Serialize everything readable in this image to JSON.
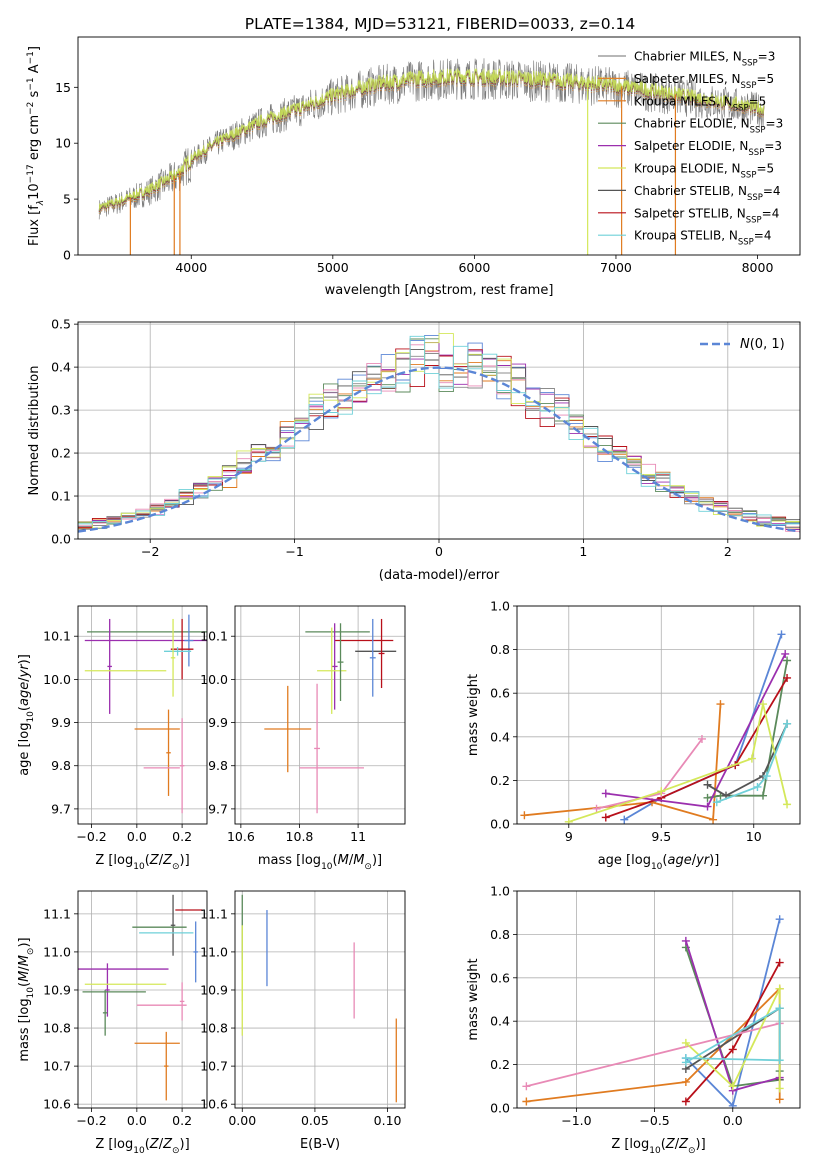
{
  "figure_title": "PLATE=1384, MJD=53121, FIBERID=0033, z=0.14",
  "colors": {
    "c_miles": "#8c8c8c",
    "s_miles": "#e3822a",
    "k_miles": "#e07b20",
    "c_elodie": "#5b8a5b",
    "s_elodie": "#9b2fae",
    "k_elodie": "#d4e85a",
    "c_stelib": "#555555",
    "s_stelib": "#b8101a",
    "k_stelib": "#6fd0d8",
    "blue": "#5b86d6",
    "pink": "#e88ab6",
    "grid": "#b0b0b0"
  },
  "chart_data": [
    {
      "id": "spectrum",
      "type": "line",
      "title": "PLATE=1384, MJD=53121, FIBERID=0033, z=0.14",
      "xlabel": "wavelength [Angstrom, rest frame]",
      "ylabel_parts": [
        "Flux [f",
        "λ",
        "10",
        "−17",
        " erg cm",
        "−2",
        " s",
        "−1",
        " A",
        "−1",
        "]"
      ],
      "xlim": [
        3200,
        8300
      ],
      "ylim": [
        0,
        19.5
      ],
      "xticks": [
        4000,
        5000,
        6000,
        7000,
        8000
      ],
      "yticks": [
        0,
        5,
        10,
        15
      ],
      "grid": false,
      "legend_position": "right",
      "legend": [
        {
          "label": "Chabrier MILES, N",
          "sub": "SSP",
          "rest": "=3",
          "color": "#8c8c8c"
        },
        {
          "label": "Salpeter MILES, N",
          "sub": "SSP",
          "rest": "=5",
          "color": "#e3822a"
        },
        {
          "label": "Kroupa MILES, N",
          "sub": "SSP",
          "rest": "=5",
          "color": "#e07b20"
        },
        {
          "label": "Chabrier ELODIE, N",
          "sub": "SSP",
          "rest": "=3",
          "color": "#5b8a5b"
        },
        {
          "label": "Salpeter ELODIE, N",
          "sub": "SSP",
          "rest": "=3",
          "color": "#9b2fae"
        },
        {
          "label": "Kroupa ELODIE, N",
          "sub": "SSP",
          "rest": "=5",
          "color": "#d4e85a"
        },
        {
          "label": "Chabrier STELIB, N",
          "sub": "SSP",
          "rest": "=4",
          "color": "#555555"
        },
        {
          "label": "Salpeter STELIB, N",
          "sub": "SSP",
          "rest": "=4",
          "color": "#b8101a"
        },
        {
          "label": "Kroupa STELIB, N",
          "sub": "SSP",
          "rest": "=4",
          "color": "#6fd0d8"
        }
      ],
      "continuum": {
        "x": [
          3350,
          3500,
          3700,
          3900,
          4000,
          4200,
          4500,
          4800,
          5000,
          5300,
          5600,
          5900,
          6200,
          6500,
          6800,
          7100,
          7300,
          7600,
          7900,
          8050
        ],
        "y": [
          4.2,
          4.8,
          5.8,
          7.2,
          8.6,
          10.2,
          12.0,
          13.3,
          14.3,
          15.3,
          15.8,
          16.0,
          15.9,
          15.7,
          15.4,
          15.0,
          14.6,
          14.0,
          13.4,
          13.0
        ]
      },
      "edge_drops": [
        {
          "x": 3570,
          "color": "#e07b20"
        },
        {
          "x": 3880,
          "color": "#e07b20"
        },
        {
          "x": 3920,
          "color": "#e07b20"
        },
        {
          "x": 6800,
          "color": "#d4e85a"
        },
        {
          "x": 7040,
          "color": "#e07b20"
        },
        {
          "x": 7420,
          "color": "#e07b20"
        }
      ],
      "noise_seed": 7
    },
    {
      "id": "histogram",
      "type": "line",
      "xlabel": "(data-model)/error",
      "ylabel": "Normed distribution",
      "xlim": [
        -2.5,
        2.5
      ],
      "ylim": [
        0,
        0.505
      ],
      "xticks": [
        -2,
        -1,
        0,
        1,
        2
      ],
      "yticks": [
        0.0,
        0.1,
        0.2,
        0.3,
        0.4,
        0.5
      ],
      "grid": true,
      "legend_position": "top-right",
      "reference_label": "N(0, 1)",
      "bin_width": 0.1,
      "series_colors": [
        "#5b86d6",
        "#e07b20",
        "#5b8a5b",
        "#b8101a",
        "#9b2fae",
        "#555555",
        "#e88ab6",
        "#8c8c8c",
        "#d4e85a",
        "#6fd0d8"
      ]
    },
    {
      "id": "age_vs_Z",
      "type": "scatter",
      "xlabel": "Z [log10(Z/Z⊙)]",
      "ylabel": "age  [log10(age/yr)]",
      "xlim": [
        -0.26,
        0.31
      ],
      "ylim": [
        9.665,
        10.17
      ],
      "xticks": [
        -0.2,
        0.0,
        0.2
      ],
      "xticklabels": [
        "−0.2",
        "0.0",
        "0.2"
      ],
      "yticks": [
        9.7,
        9.8,
        9.9,
        10.0,
        10.1
      ],
      "grid": true,
      "points": [
        {
          "x": 0.05,
          "y": 10.11,
          "xerr": 0.27,
          "yerr": 0,
          "color": "#5b8a5b"
        },
        {
          "x": 0.07,
          "y": 10.09,
          "xerr": 0.3,
          "yerr": 0,
          "color": "#9b2fae"
        },
        {
          "x": 0.23,
          "y": 10.09,
          "xerr": 0.02,
          "yerr": 0.06,
          "color": "#5b86d6"
        },
        {
          "x": 0.2,
          "y": 10.07,
          "xerr": 0.05,
          "yerr": 0.07,
          "color": "#b8101a"
        },
        {
          "x": 0.18,
          "y": 10.065,
          "xerr": 0.06,
          "yerr": 0.01,
          "color": "#6fd0d8"
        },
        {
          "x": -0.12,
          "y": 10.03,
          "xerr": 0.01,
          "yerr": 0.11,
          "color": "#9b2fae"
        },
        {
          "x": -0.05,
          "y": 10.02,
          "xerr": 0.18,
          "yerr": 0.0,
          "color": "#d4e85a"
        },
        {
          "x": 0.16,
          "y": 10.05,
          "xerr": 0.01,
          "yerr": 0.09,
          "color": "#d4e85a"
        },
        {
          "x": 0.09,
          "y": 9.885,
          "xerr": 0.1,
          "yerr": 0.0,
          "color": "#e07b20"
        },
        {
          "x": 0.14,
          "y": 9.83,
          "xerr": 0.01,
          "yerr": 0.1,
          "color": "#e07b20"
        },
        {
          "x": 0.11,
          "y": 9.795,
          "xerr": 0.08,
          "yerr": 0.0,
          "color": "#e88ab6"
        },
        {
          "x": 0.2,
          "y": 9.8,
          "xerr": 0.01,
          "yerr": 0.11,
          "color": "#e88ab6"
        }
      ]
    },
    {
      "id": "age_vs_mass",
      "type": "scatter",
      "xlabel": "mass [log10(M/M⊙)]",
      "ylabel": "",
      "xlim": [
        10.58,
        11.16
      ],
      "ylim": [
        9.665,
        10.17
      ],
      "xticks": [
        10.6,
        10.8,
        11.0
      ],
      "yticks": [
        9.7,
        9.8,
        9.9,
        10.0,
        10.1
      ],
      "grid": true,
      "points": [
        {
          "x": 10.93,
          "y": 10.11,
          "xerr": 0.11,
          "yerr": 0.0,
          "color": "#5b8a5b"
        },
        {
          "x": 11.02,
          "y": 10.09,
          "xerr": 0.1,
          "yerr": 0.0,
          "color": "#b8101a"
        },
        {
          "x": 11.06,
          "y": 10.065,
          "xerr": 0.07,
          "yerr": 0.0,
          "color": "#555555"
        },
        {
          "x": 11.08,
          "y": 10.06,
          "xerr": 0.01,
          "yerr": 0.08,
          "color": "#b8101a"
        },
        {
          "x": 11.05,
          "y": 10.05,
          "xerr": 0.01,
          "yerr": 0.09,
          "color": "#5b86d6"
        },
        {
          "x": 10.92,
          "y": 10.03,
          "xerr": 0.01,
          "yerr": 0.1,
          "color": "#9b2fae"
        },
        {
          "x": 10.91,
          "y": 10.02,
          "xerr": 0.05,
          "yerr": 0.1,
          "color": "#d4e85a"
        },
        {
          "x": 10.94,
          "y": 10.04,
          "xerr": 0.01,
          "yerr": 0.09,
          "color": "#5b8a5b"
        },
        {
          "x": 10.76,
          "y": 9.885,
          "xerr": 0.08,
          "yerr": 0.1,
          "color": "#e07b20"
        },
        {
          "x": 10.91,
          "y": 9.795,
          "xerr": 0.11,
          "yerr": 0.0,
          "color": "#e88ab6"
        },
        {
          "x": 10.86,
          "y": 9.84,
          "xerr": 0.01,
          "yerr": 0.15,
          "color": "#e88ab6"
        }
      ]
    },
    {
      "id": "mass_weight_vs_age",
      "type": "line",
      "xlabel": "age  [log10(age/yr)]",
      "ylabel": "mass weight",
      "xlim": [
        8.72,
        10.25
      ],
      "ylim": [
        0.0,
        1.0
      ],
      "xticks": [
        9.0,
        9.5,
        10.0
      ],
      "yticks": [
        0.0,
        0.2,
        0.4,
        0.6,
        0.8,
        1.0
      ],
      "grid": true,
      "series": [
        {
          "color": "#5b86d6",
          "x": [
            9.3,
            9.5,
            9.9,
            10.15
          ],
          "y": [
            0.02,
            0.12,
            0.27,
            0.87
          ]
        },
        {
          "color": "#e07b20",
          "x": [
            8.76,
            9.45,
            9.78,
            9.82
          ],
          "y": [
            0.04,
            0.1,
            0.02,
            0.55
          ]
        },
        {
          "color": "#5b8a5b",
          "x": [
            9.75,
            9.82,
            10.05,
            10.18
          ],
          "y": [
            0.12,
            0.13,
            0.13,
            0.75
          ]
        },
        {
          "color": "#b8101a",
          "x": [
            9.2,
            9.5,
            9.9,
            10.18
          ],
          "y": [
            0.03,
            0.12,
            0.27,
            0.67
          ]
        },
        {
          "color": "#9b2fae",
          "x": [
            9.2,
            9.75,
            10.17
          ],
          "y": [
            0.14,
            0.08,
            0.78
          ]
        },
        {
          "color": "#555555",
          "x": [
            9.75,
            9.85,
            10.05,
            10.18
          ],
          "y": [
            0.18,
            0.13,
            0.22,
            0.46
          ]
        },
        {
          "color": "#e88ab6",
          "x": [
            9.15,
            9.5,
            9.72
          ],
          "y": [
            0.07,
            0.14,
            0.39
          ]
        },
        {
          "color": "#d4e85a",
          "x": [
            9.0,
            9.5,
            9.99,
            10.05,
            10.18
          ],
          "y": [
            0.01,
            0.15,
            0.3,
            0.55,
            0.09
          ]
        },
        {
          "color": "#6fd0d8",
          "x": [
            9.8,
            10.02,
            10.07,
            10.18
          ],
          "y": [
            0.1,
            0.17,
            0.22,
            0.46
          ]
        }
      ]
    },
    {
      "id": "mass_vs_Z",
      "type": "scatter",
      "xlabel": "Z [log10(Z/Z⊙)]",
      "ylabel": "mass [log10(M/M⊙)]",
      "xlim": [
        -0.26,
        0.31
      ],
      "ylim": [
        10.59,
        11.16
      ],
      "xticks": [
        -0.2,
        0.0,
        0.2
      ],
      "xticklabels": [
        "−0.2",
        "0.0",
        "0.2"
      ],
      "yticks": [
        10.6,
        10.7,
        10.8,
        10.9,
        11.0,
        11.1
      ],
      "grid": true,
      "points": [
        {
          "x": 0.23,
          "y": 11.11,
          "xerr": 0.06,
          "yerr": 0.0,
          "color": "#b8101a"
        },
        {
          "x": 0.16,
          "y": 11.07,
          "xerr": 0.01,
          "yerr": 0.08,
          "color": "#555555"
        },
        {
          "x": 0.1,
          "y": 11.065,
          "xerr": 0.12,
          "yerr": 0.0,
          "color": "#5b8a5b"
        },
        {
          "x": 0.13,
          "y": 11.05,
          "xerr": 0.12,
          "yerr": 0.0,
          "color": "#6fd0d8"
        },
        {
          "x": 0.26,
          "y": 11.0,
          "xerr": 0.01,
          "yerr": 0.08,
          "color": "#5b86d6"
        },
        {
          "x": -0.06,
          "y": 10.955,
          "xerr": 0.2,
          "yerr": 0.0,
          "color": "#9b2fae"
        },
        {
          "x": -0.13,
          "y": 10.9,
          "xerr": 0.01,
          "yerr": 0.07,
          "color": "#9b2fae"
        },
        {
          "x": -0.05,
          "y": 10.915,
          "xerr": 0.18,
          "yerr": 0.0,
          "color": "#d4e85a"
        },
        {
          "x": -0.1,
          "y": 10.895,
          "xerr": 0.14,
          "yerr": 0.0,
          "color": "#5b8a5b"
        },
        {
          "x": -0.14,
          "y": 10.84,
          "xerr": 0.01,
          "yerr": 0.06,
          "color": "#5b8a5b"
        },
        {
          "x": 0.11,
          "y": 10.86,
          "xerr": 0.11,
          "yerr": 0.0,
          "color": "#e88ab6"
        },
        {
          "x": 0.2,
          "y": 10.87,
          "xerr": 0.01,
          "yerr": 0.05,
          "color": "#e88ab6"
        },
        {
          "x": 0.09,
          "y": 10.76,
          "xerr": 0.1,
          "yerr": 0.0,
          "color": "#e07b20"
        },
        {
          "x": 0.13,
          "y": 10.7,
          "xerr": 0.01,
          "yerr": 0.09,
          "color": "#e07b20"
        }
      ]
    },
    {
      "id": "mass_vs_EBV",
      "type": "scatter",
      "xlabel": "E(B-V)",
      "ylabel": "",
      "xlim": [
        -0.005,
        0.112
      ],
      "ylim": [
        10.59,
        11.16
      ],
      "xticks": [
        0.0,
        0.05,
        0.1
      ],
      "xticklabels": [
        "0.00",
        "0.05",
        "0.10"
      ],
      "yticks": [
        10.6,
        10.7,
        10.8,
        10.9,
        11.0,
        11.1
      ],
      "grid": true,
      "points": [
        {
          "x": 0.0,
          "y": 11.05,
          "xerr": 0.0,
          "yerr": 0.1,
          "color": "#5b8a5b"
        },
        {
          "x": 0.0,
          "y": 10.97,
          "xerr": 0.0,
          "yerr": 0.1,
          "color": "#d4e85a"
        },
        {
          "x": 0.0,
          "y": 10.88,
          "xerr": 0.0,
          "yerr": 0.1,
          "color": "#d4e85a"
        },
        {
          "x": 0.017,
          "y": 11.01,
          "xerr": 0.0,
          "yerr": 0.1,
          "color": "#5b86d6"
        },
        {
          "x": 0.077,
          "y": 10.925,
          "xerr": 0.0,
          "yerr": 0.1,
          "color": "#e88ab6"
        },
        {
          "x": 0.106,
          "y": 10.715,
          "xerr": 0.0,
          "yerr": 0.11,
          "color": "#e07b20"
        }
      ]
    },
    {
      "id": "mass_weight_vs_Z",
      "type": "line",
      "xlabel": "Z [log10(Z/Z⊙)]",
      "ylabel": "mass weight",
      "xlim": [
        -1.38,
        0.43
      ],
      "ylim": [
        0.0,
        1.0
      ],
      "xticks": [
        -1.0,
        -0.5,
        0.0
      ],
      "xticklabels": [
        "−1.0",
        "−0.5",
        "0.0"
      ],
      "yticks": [
        0.0,
        0.2,
        0.4,
        0.6,
        0.8,
        1.0
      ],
      "grid": true,
      "series": [
        {
          "color": "#5b86d6",
          "x": [
            -0.3,
            0.0,
            0.3
          ],
          "y": [
            0.23,
            0.01,
            0.87
          ]
        },
        {
          "color": "#e07b20",
          "x": [
            -1.32,
            -0.3,
            0.3,
            0.3
          ],
          "y": [
            0.03,
            0.12,
            0.55,
            0.04
          ]
        },
        {
          "color": "#5b8a5b",
          "x": [
            -0.3,
            0.0,
            0.3,
            0.3
          ],
          "y": [
            0.74,
            0.1,
            0.13,
            0.17
          ]
        },
        {
          "color": "#b8101a",
          "x": [
            -0.3,
            0.0,
            0.3
          ],
          "y": [
            0.03,
            0.27,
            0.67
          ]
        },
        {
          "color": "#9b2fae",
          "x": [
            -0.3,
            0.0,
            0.3
          ],
          "y": [
            0.77,
            0.08,
            0.14
          ]
        },
        {
          "color": "#555555",
          "x": [
            -0.3,
            0.3,
            0.3
          ],
          "y": [
            0.18,
            0.46,
            0.13
          ]
        },
        {
          "color": "#e88ab6",
          "x": [
            -1.32,
            0.3
          ],
          "y": [
            0.1,
            0.39
          ]
        },
        {
          "color": "#d4e85a",
          "x": [
            -0.3,
            0.0,
            0.3,
            0.3
          ],
          "y": [
            0.3,
            0.1,
            0.55,
            0.09
          ]
        },
        {
          "color": "#6fd0d8",
          "x": [
            -0.3,
            0.3,
            0.3,
            -0.3
          ],
          "y": [
            0.23,
            0.22,
            0.46,
            0.21
          ]
        }
      ]
    }
  ]
}
